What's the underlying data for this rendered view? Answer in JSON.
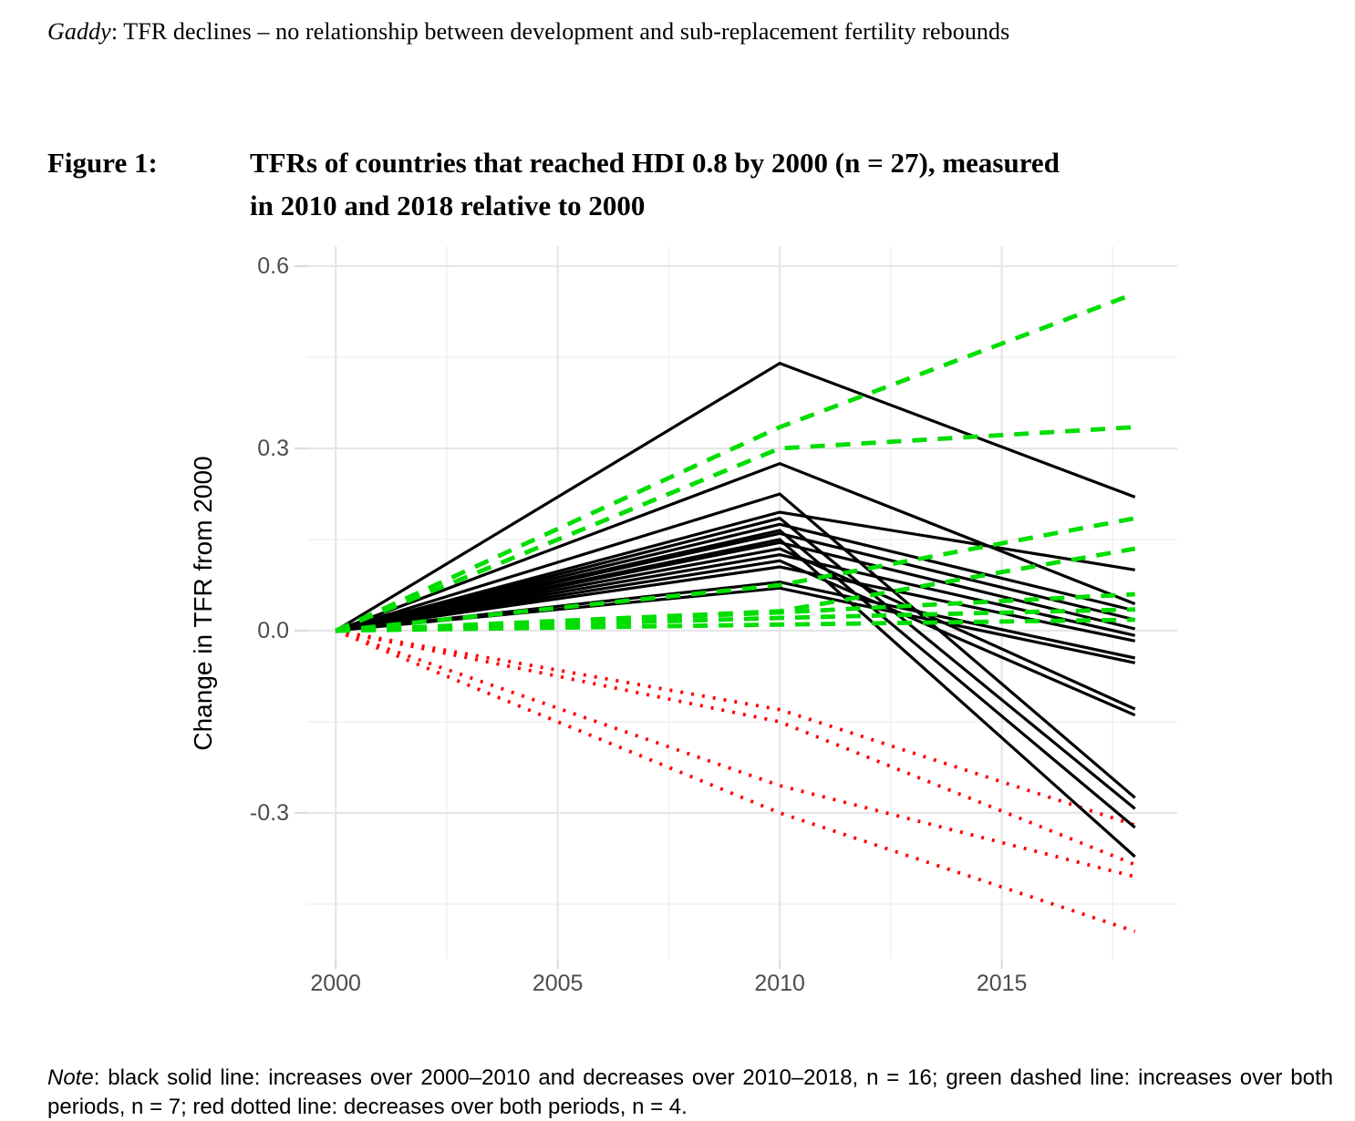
{
  "page": {
    "header": {
      "author_italic": "Gaddy",
      "rest": ": TFR declines – no relationship between development and sub-replacement fertility rebounds"
    },
    "figure_label": "Figure 1:",
    "figure_title_line1": "TFRs of countries that reached HDI 0.8 by 2000 (n = 27), measured",
    "figure_title_line2": "in 2010 and 2018 relative to 2000",
    "note_prefix": "Note",
    "note_body": ": black solid line: increases over 2000–2010 and decreases over 2010–2018, n = 16; green dashed line: increases over both periods, n = 7; red dotted line: decreases over both periods, n = 4."
  },
  "chart_data": {
    "type": "line",
    "title": "",
    "xlabel": "",
    "ylabel": "Change in TFR from 2000",
    "x_years": [
      2000,
      2010,
      2018
    ],
    "x_ticks": {
      "values": [
        2000,
        2005,
        2010,
        2015
      ],
      "labels": [
        "2000",
        "2005",
        "2010",
        "2015"
      ]
    },
    "y_ticks": {
      "values": [
        0.6,
        0.3,
        0.0,
        -0.3
      ],
      "labels": [
        "0.6",
        "0.3",
        "0.0",
        "-0.3"
      ]
    },
    "x_minor": [
      2002.5,
      2007.5,
      2012.5,
      2017.5
    ],
    "y_minor": [
      0.45,
      0.15,
      -0.15,
      -0.45
    ],
    "xlim": [
      1999.36,
      2018.95
    ],
    "ylim": [
      -0.5415,
      0.633
    ],
    "grid": true,
    "legend": "none",
    "colors": {
      "black_solid": "#000000",
      "green_dashed": "#00dd00",
      "red_dotted": "#ff0000",
      "grid_major": "#e6e6e6",
      "grid_minor": "#f1f1f1",
      "tick": "#dcdcdc",
      "axis_text": "#4d4d4d",
      "axis_title": "#000000"
    },
    "groups": [
      {
        "name": "black-solid",
        "label": "increases over 2000–2010 and decreases over 2010–2018",
        "n": 16,
        "style": "solid",
        "color_key": "black_solid",
        "series": [
          [
            0.0,
            0.44,
            0.22
          ],
          [
            0.0,
            0.275,
            0.044
          ],
          [
            0.0,
            0.225,
            -0.275
          ],
          [
            0.0,
            0.195,
            0.1
          ],
          [
            0.0,
            0.185,
            -0.293
          ],
          [
            0.0,
            0.175,
            0.033
          ],
          [
            0.0,
            0.165,
            -0.324
          ],
          [
            0.0,
            0.16,
            0.018
          ],
          [
            0.0,
            0.15,
            -0.372
          ],
          [
            0.0,
            0.145,
            0.003
          ],
          [
            0.0,
            0.135,
            -0.129
          ],
          [
            0.0,
            0.125,
            -0.008
          ],
          [
            0.0,
            0.115,
            -0.139
          ],
          [
            0.0,
            0.105,
            -0.017
          ],
          [
            0.0,
            0.08,
            -0.045
          ],
          [
            0.0,
            0.07,
            -0.053
          ]
        ]
      },
      {
        "name": "green-dashed",
        "label": "increases over both periods",
        "n": 7,
        "style": "dashed",
        "color_key": "green_dashed",
        "series": [
          [
            0.0,
            0.335,
            0.555
          ],
          [
            0.0,
            0.3,
            0.335
          ],
          [
            0.0,
            0.075,
            0.185
          ],
          [
            0.0,
            0.032,
            0.135
          ],
          [
            0.0,
            0.03,
            0.06
          ],
          [
            0.0,
            0.021,
            0.035
          ],
          [
            0.0,
            0.01,
            0.018
          ]
        ]
      },
      {
        "name": "red-dotted",
        "label": "decreases over both periods",
        "n": 4,
        "style": "dotted",
        "color_key": "red_dotted",
        "series": [
          [
            0.0,
            -0.13,
            -0.32
          ],
          [
            0.0,
            -0.15,
            -0.385
          ],
          [
            0.0,
            -0.255,
            -0.405
          ],
          [
            0.0,
            -0.3,
            -0.495
          ]
        ]
      }
    ]
  }
}
